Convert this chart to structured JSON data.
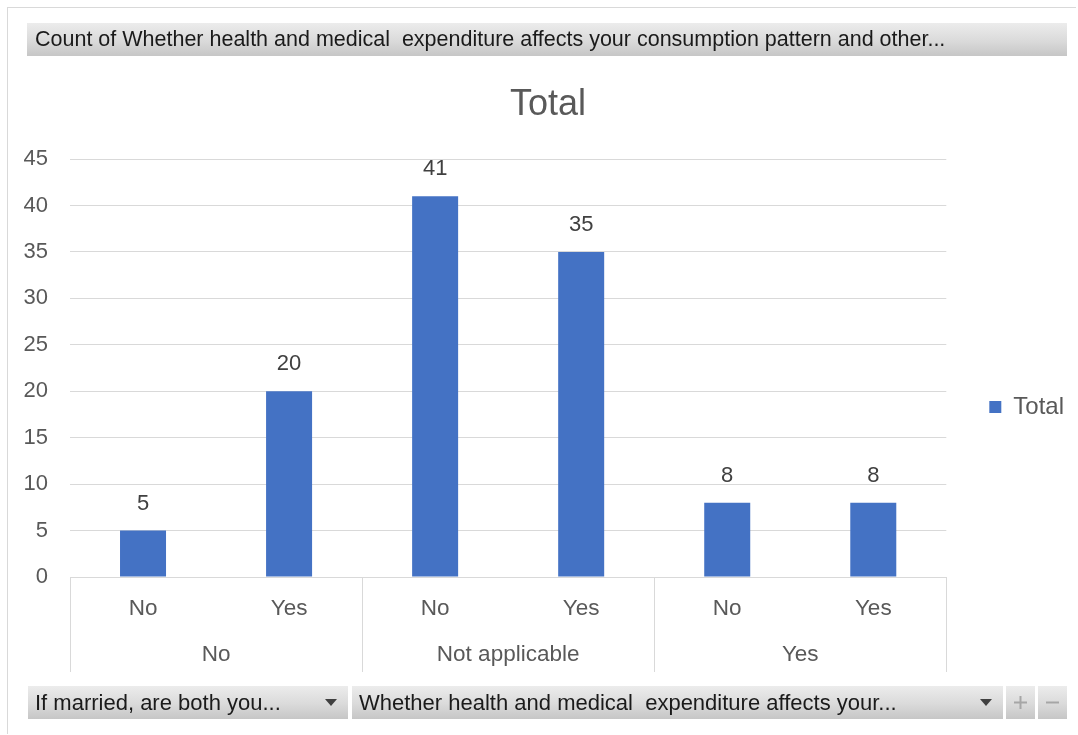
{
  "chart_data": {
    "type": "bar",
    "title": "Total",
    "subtitle": "Count of Whether health and medical  expenditure affects your consumption pattern and other...",
    "categories": [
      "No",
      "Yes",
      "No",
      "Yes",
      "No",
      "Yes"
    ],
    "series": [
      {
        "name": "Total",
        "color": "#4472c4",
        "values": [
          5,
          20,
          41,
          35,
          8,
          8
        ]
      }
    ],
    "ylim": [
      0,
      45
    ],
    "yticks": [
      0,
      5,
      10,
      15,
      20,
      25,
      30,
      35,
      40,
      45
    ],
    "grid": "y",
    "legend": "right",
    "data_labels": true,
    "annotations": [
      "No",
      "Not applicable",
      "Yes",
      "If married, are both you...",
      "Whether health and medical  expenditure affects your..."
    ]
  }
}
